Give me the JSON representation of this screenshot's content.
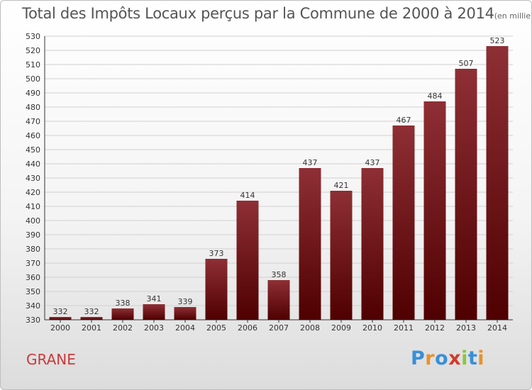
{
  "header": {
    "title": "Total des Impôts Locaux perçus par la Commune de 2000 à 2014",
    "unit": "(en milliers d'€)"
  },
  "footer": {
    "commune": "GRANE",
    "brand": "Proxiti",
    "brand_colors": [
      "#3a8fd6",
      "#e8912b",
      "#3a8fd6",
      "#d23b2b",
      "#8cc63f",
      "#3a8fd6",
      "#e8912b"
    ]
  },
  "colors": {
    "bar_top": "#8e2f35",
    "bar_bottom": "#4f0000",
    "grid": "#d0d0d0",
    "axis": "#333333"
  },
  "chart_data": {
    "type": "bar",
    "title": "Total des Impôts Locaux perçus par la Commune de 2000 à 2014",
    "xlabel": "",
    "ylabel": "",
    "categories": [
      "2000",
      "2001",
      "2002",
      "2003",
      "2004",
      "2005",
      "2006",
      "2007",
      "2008",
      "2009",
      "2010",
      "2011",
      "2012",
      "2013",
      "2014"
    ],
    "values": [
      332,
      332,
      338,
      341,
      339,
      373,
      414,
      358,
      437,
      421,
      437,
      467,
      484,
      507,
      523
    ],
    "ylim": [
      330,
      530
    ],
    "yticks": [
      330,
      340,
      350,
      360,
      370,
      380,
      390,
      400,
      410,
      420,
      430,
      440,
      450,
      460,
      470,
      480,
      490,
      500,
      510,
      520,
      530
    ],
    "grid": true
  }
}
